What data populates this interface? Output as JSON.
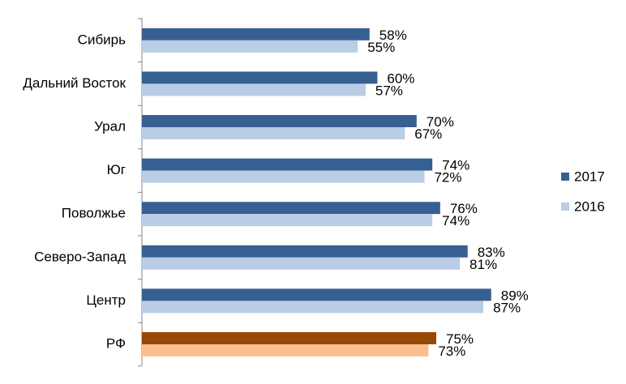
{
  "chart_data": {
    "type": "hbar",
    "categories": [
      "Сибирь",
      "Дальний Восток",
      "Урал",
      "Юг",
      "Поволжье",
      "Северо-Запад",
      "Центр",
      "РФ"
    ],
    "series": [
      {
        "name": "2017",
        "color": "#376092",
        "colors": [
          "#376092",
          "#376092",
          "#376092",
          "#376092",
          "#376092",
          "#376092",
          "#376092",
          "#974806"
        ],
        "values": [
          58,
          60,
          70,
          74,
          76,
          83,
          89,
          75
        ],
        "value_labels": [
          "58%",
          "60%",
          "70%",
          "74%",
          "76%",
          "83%",
          "89%",
          "75%"
        ]
      },
      {
        "name": "2016",
        "color": "#b9cde5",
        "colors": [
          "#b9cde5",
          "#b9cde5",
          "#b9cde5",
          "#b9cde5",
          "#b9cde5",
          "#b9cde5",
          "#b9cde5",
          "#fac090"
        ],
        "values": [
          55,
          57,
          67,
          72,
          74,
          81,
          87,
          73
        ],
        "value_labels": [
          "55%",
          "57%",
          "67%",
          "72%",
          "74%",
          "81%",
          "87%",
          "73%"
        ]
      }
    ],
    "xlim": [
      0,
      100
    ],
    "legend": "right"
  }
}
